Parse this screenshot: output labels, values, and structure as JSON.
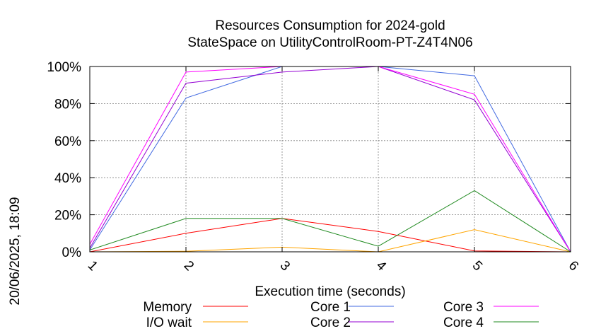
{
  "chart_data": {
    "type": "line",
    "title": "Resources Consumption for 2024-gold",
    "subtitle": "StateSpace on UtilityControlRoom-PT-Z4T4N06",
    "xlabel": "Execution time (seconds)",
    "ylabel": "",
    "timestamp": "20/06/2025, 18:09",
    "x": [
      1,
      2,
      3,
      4,
      5,
      6
    ],
    "x_tick_labels": [
      "1",
      "2",
      "3",
      "4",
      "5",
      "6"
    ],
    "xlim": [
      1,
      6
    ],
    "ylim": [
      0,
      100
    ],
    "y_tick_labels": [
      "0%",
      "20%",
      "40%",
      "60%",
      "80%",
      "100%"
    ],
    "grid": true,
    "legend_position": "bottom",
    "series": [
      {
        "name": "Memory",
        "color": "#ff0000",
        "values": [
          0,
          10,
          18,
          11,
          0.5,
          0
        ]
      },
      {
        "name": "I/O wait",
        "color": "#ffa500",
        "values": [
          0,
          0.3,
          2.5,
          0,
          12,
          0
        ]
      },
      {
        "name": "Core 1",
        "color": "#4169e1",
        "values": [
          1,
          83,
          100,
          100,
          95,
          0
        ]
      },
      {
        "name": "Core 2",
        "color": "#9400d3",
        "values": [
          2,
          91,
          97,
          100,
          82,
          0
        ]
      },
      {
        "name": "Core 3",
        "color": "#ff00ff",
        "values": [
          4,
          97,
          100,
          100,
          85,
          0
        ]
      },
      {
        "name": "Core 4",
        "color": "#228b22",
        "values": [
          1,
          18,
          18,
          3,
          33,
          0
        ]
      }
    ]
  }
}
